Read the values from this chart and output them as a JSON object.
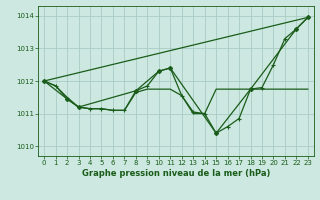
{
  "title": "Graphe pression niveau de la mer (hPa)",
  "background_color": "#cce8e0",
  "grid_color": "#aaccc4",
  "line_color": "#1a5c1a",
  "xlim": [
    -0.5,
    23.5
  ],
  "ylim": [
    1009.7,
    1014.3
  ],
  "xticks": [
    0,
    1,
    2,
    3,
    4,
    5,
    6,
    7,
    8,
    9,
    10,
    11,
    12,
    13,
    14,
    15,
    16,
    17,
    18,
    19,
    20,
    21,
    22,
    23
  ],
  "yticks": [
    1010,
    1011,
    1012,
    1013,
    1014
  ],
  "series1_x": [
    0,
    1,
    2,
    3,
    4,
    5,
    6,
    7,
    8,
    9,
    10,
    11,
    12,
    13,
    14,
    15,
    16,
    17,
    18,
    19,
    20,
    21,
    22,
    23
  ],
  "series1_y": [
    1012.0,
    1011.85,
    1011.5,
    1011.2,
    1011.15,
    1011.15,
    1011.1,
    1011.1,
    1011.65,
    1011.75,
    1011.75,
    1011.75,
    1011.55,
    1011.0,
    1011.0,
    1011.75,
    1011.75,
    1011.75,
    1011.75,
    1011.75,
    1011.75,
    1011.75,
    1011.75,
    1011.75
  ],
  "series2_x": [
    0,
    1,
    2,
    3,
    4,
    5,
    6,
    7,
    8,
    9,
    10,
    11,
    12,
    13,
    14,
    15,
    16,
    17,
    18,
    19,
    20,
    21,
    22,
    23
  ],
  "series2_y": [
    1012.0,
    1011.85,
    1011.45,
    1011.2,
    1011.15,
    1011.15,
    1011.1,
    1011.1,
    1011.7,
    1011.85,
    1012.3,
    1012.4,
    1011.55,
    1011.05,
    1011.0,
    1010.4,
    1010.6,
    1010.85,
    1011.75,
    1011.8,
    1012.5,
    1013.3,
    1013.6,
    1013.95
  ],
  "series3_x": [
    0,
    23
  ],
  "series3_y": [
    1012.0,
    1013.95
  ],
  "series4_x": [
    0,
    2,
    3,
    8,
    10,
    11,
    15,
    18,
    22,
    23
  ],
  "series4_y": [
    1012.0,
    1011.45,
    1011.2,
    1011.7,
    1012.3,
    1012.4,
    1010.4,
    1011.75,
    1013.6,
    1013.95
  ]
}
